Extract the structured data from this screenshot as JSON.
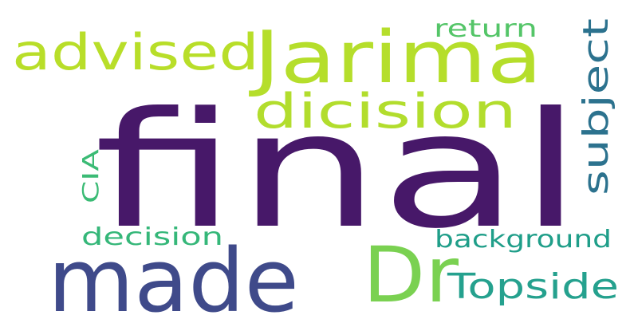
{
  "words": [
    {
      "text": "final",
      "color": "#471869"
    },
    {
      "text": "made",
      "color": "#3f4a8a"
    },
    {
      "text": "Jarima",
      "color": "#b5de2b"
    },
    {
      "text": "Dr",
      "color": "#7ad151"
    },
    {
      "text": "advised",
      "color": "#b8de29"
    },
    {
      "text": "dicision",
      "color": "#b2dd2d"
    },
    {
      "text": "subject",
      "color": "#2c728e"
    },
    {
      "text": "Topside",
      "color": "#25a18e"
    },
    {
      "text": "background",
      "color": "#1f9e89"
    },
    {
      "text": "decision",
      "color": "#35b779"
    },
    {
      "text": "return",
      "color": "#54c568"
    },
    {
      "text": "CIA",
      "color": "#3bbb75"
    }
  ]
}
